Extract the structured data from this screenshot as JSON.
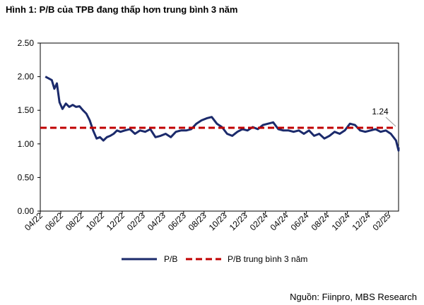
{
  "figure_title": "Hình 1: P/B của TPB đang thấp hơn trung bình 3 năm",
  "source": "Nguồn: Fiinpro, MBS Research",
  "chart_data": {
    "type": "line",
    "title": "",
    "xlabel": "",
    "ylabel": "",
    "ylim": [
      0,
      2.5
    ],
    "y_ticks": [
      "0.00",
      "0.50",
      "1.00",
      "1.50",
      "2.00",
      "2.50"
    ],
    "x_ticks": [
      "04/22",
      "06/22",
      "08/22",
      "10/22",
      "12/22",
      "02/23",
      "04/23",
      "06/23",
      "08/23",
      "10/23",
      "12/23",
      "02/24",
      "04/24",
      "06/24",
      "08/24",
      "10/24",
      "12/24",
      "02/25"
    ],
    "x_start": "04/22",
    "x_end": "03/25",
    "legend_position": "bottom",
    "grid": false,
    "series": [
      {
        "name": "P/B",
        "color": "#1b2a6b",
        "style": "solid",
        "x": [
          "04/22",
          "05/22",
          "05/22",
          "05/22",
          "05/22",
          "06/22",
          "06/22",
          "06/22",
          "07/22",
          "07/22",
          "07/22",
          "08/22",
          "08/22",
          "08/22",
          "09/22",
          "09/22",
          "09/22",
          "10/22",
          "10/22",
          "10/22",
          "11/22",
          "11/22",
          "11/22",
          "12/22",
          "12/22",
          "01/23",
          "01/23",
          "02/23",
          "02/23",
          "03/23",
          "03/23",
          "04/23",
          "04/23",
          "05/23",
          "05/23",
          "06/23",
          "06/23",
          "07/23",
          "07/23",
          "08/23",
          "08/23",
          "09/23",
          "09/23",
          "10/23",
          "10/23",
          "11/23",
          "11/23",
          "12/23",
          "12/23",
          "01/24",
          "01/24",
          "02/24",
          "02/24",
          "03/24",
          "03/24",
          "04/24",
          "04/24",
          "05/24",
          "05/24",
          "06/24",
          "06/24",
          "07/24",
          "07/24",
          "08/24",
          "08/24",
          "09/24",
          "09/24",
          "10/24",
          "10/24",
          "11/24",
          "11/24",
          "12/24",
          "12/24",
          "01/25",
          "01/25",
          "02/25",
          "02/25",
          "03/25",
          "03/25"
        ],
        "values": [
          2.0,
          1.95,
          1.82,
          1.9,
          1.62,
          1.52,
          1.6,
          1.55,
          1.58,
          1.55,
          1.56,
          1.5,
          1.45,
          1.35,
          1.2,
          1.08,
          1.1,
          1.05,
          1.1,
          1.12,
          1.15,
          1.2,
          1.18,
          1.2,
          1.22,
          1.15,
          1.2,
          1.18,
          1.22,
          1.1,
          1.12,
          1.15,
          1.1,
          1.18,
          1.2,
          1.2,
          1.22,
          1.3,
          1.35,
          1.38,
          1.4,
          1.3,
          1.25,
          1.15,
          1.12,
          1.18,
          1.22,
          1.2,
          1.25,
          1.22,
          1.28,
          1.3,
          1.32,
          1.22,
          1.2,
          1.2,
          1.18,
          1.2,
          1.15,
          1.2,
          1.12,
          1.15,
          1.08,
          1.12,
          1.18,
          1.15,
          1.2,
          1.3,
          1.28,
          1.2,
          1.18,
          1.2,
          1.22,
          1.18,
          1.2,
          1.15,
          1.05,
          0.9,
          0.95
        ]
      },
      {
        "name": "P/B trung bình 3 năm",
        "color": "#c00000",
        "style": "dashed",
        "constant": 1.24,
        "label": "1.24"
      }
    ]
  }
}
